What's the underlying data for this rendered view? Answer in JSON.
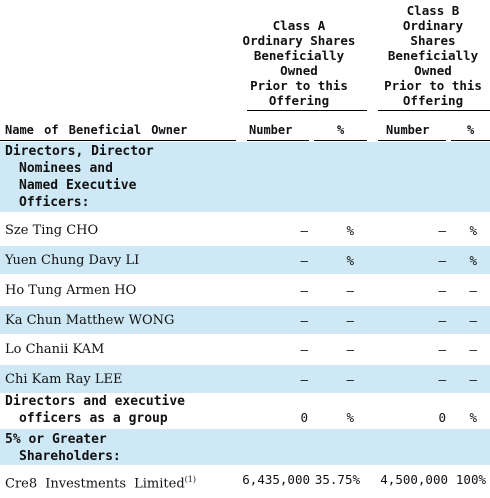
{
  "header": {
    "class_a": [
      "Class A",
      "Ordinary Shares",
      "Beneficially",
      "Owned",
      "Prior to this",
      "Offering"
    ],
    "class_b": [
      "Class B",
      "Ordinary",
      "Shares",
      "Beneficially",
      "Owned",
      "Prior to this",
      "Offering"
    ],
    "name_col": "Name of Beneficial Owner",
    "number": "Number",
    "percent": "%"
  },
  "sections": {
    "directors": [
      "Directors, Director",
      "Nominees and",
      "Named Executive",
      "Officers:"
    ],
    "group": [
      "Directors and executive",
      "officers as a group"
    ],
    "five_percent": [
      "5% or Greater",
      "Shareholders:"
    ]
  },
  "rows": [
    {
      "name": "Sze Ting CHO",
      "a_num": "—",
      "a_pct": "%",
      "b_num": "—",
      "b_pct": "%"
    },
    {
      "name": "Yuen Chung Davy LI",
      "a_num": "—",
      "a_pct": "%",
      "b_num": "—",
      "b_pct": "%"
    },
    {
      "name": "Ho Tung Armen HO",
      "a_num": "—",
      "a_pct": "—",
      "b_num": "—",
      "b_pct": "—"
    },
    {
      "name": "Ka Chun Matthew WONG",
      "a_num": "—",
      "a_pct": "—",
      "b_num": "—",
      "b_pct": "—"
    },
    {
      "name": "Lo Chanii KAM",
      "a_num": "—",
      "a_pct": "—",
      "b_num": "—",
      "b_pct": "—"
    },
    {
      "name": "Chi Kam Ray LEE",
      "a_num": "—",
      "a_pct": "—",
      "b_num": "—",
      "b_pct": "—"
    }
  ],
  "group_row": {
    "a_num": "0",
    "a_pct": "%",
    "b_num": "0",
    "b_pct": "%"
  },
  "cre8": {
    "name": "Cre8 Investments Limited",
    "footnote": "(1)",
    "a_num": "6,435,000",
    "a_pct": "35.75%",
    "b_num": "4,500,000",
    "b_pct": "100%"
  }
}
